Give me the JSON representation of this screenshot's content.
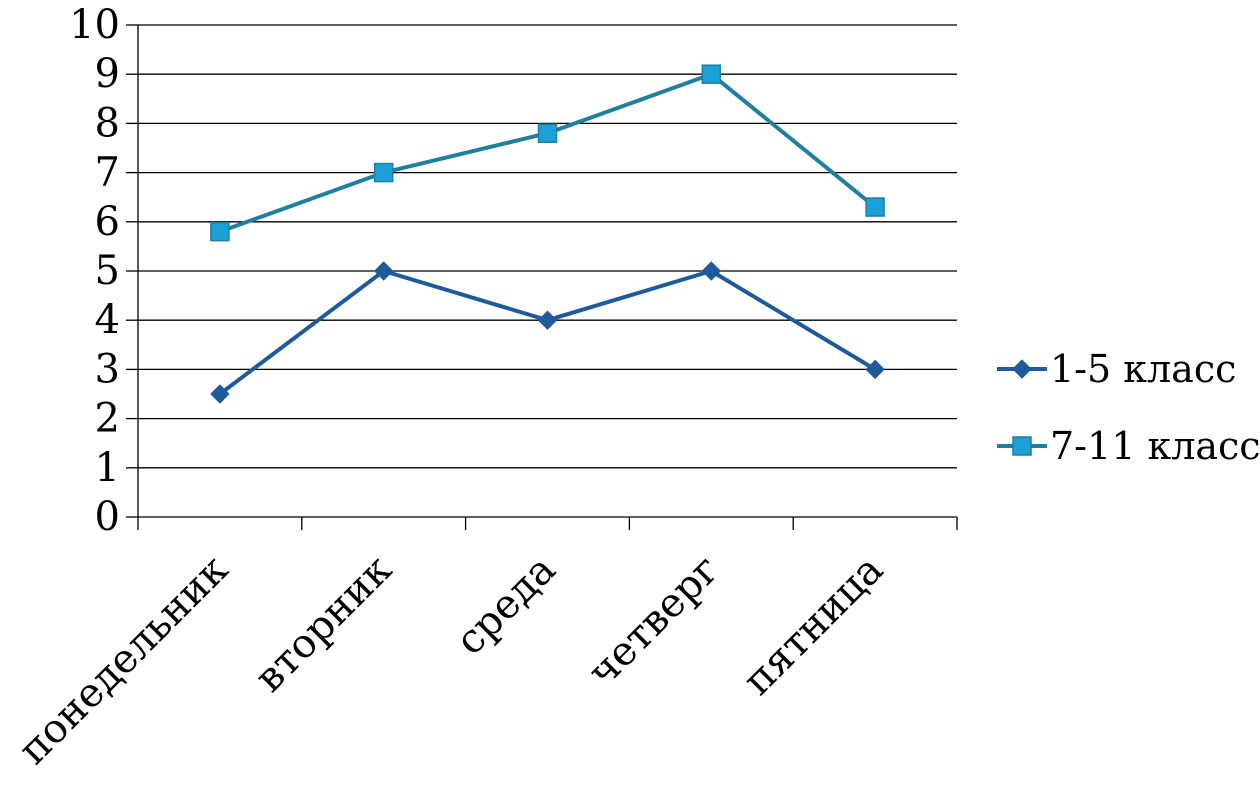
{
  "chart_data": {
    "type": "line",
    "categories": [
      "понедельник",
      "вторник",
      "среда",
      "четверг",
      "пятница"
    ],
    "series": [
      {
        "name": "1-5 класс",
        "values": [
          2.5,
          5,
          4,
          5,
          3
        ],
        "color": "#1F5A9A",
        "marker": "diamond"
      },
      {
        "name": "7-11 класс",
        "values": [
          5.8,
          7,
          7.8,
          9,
          6.3
        ],
        "color": "#1F7F9E",
        "markerFill": "#1BA1D8",
        "marker": "square"
      }
    ],
    "ylim": [
      0,
      10
    ],
    "yticks": [
      "0",
      "1",
      "2",
      "3",
      "4",
      "5",
      "6",
      "7",
      "8",
      "9",
      "10"
    ],
    "grid": true,
    "legend_position": "right"
  }
}
